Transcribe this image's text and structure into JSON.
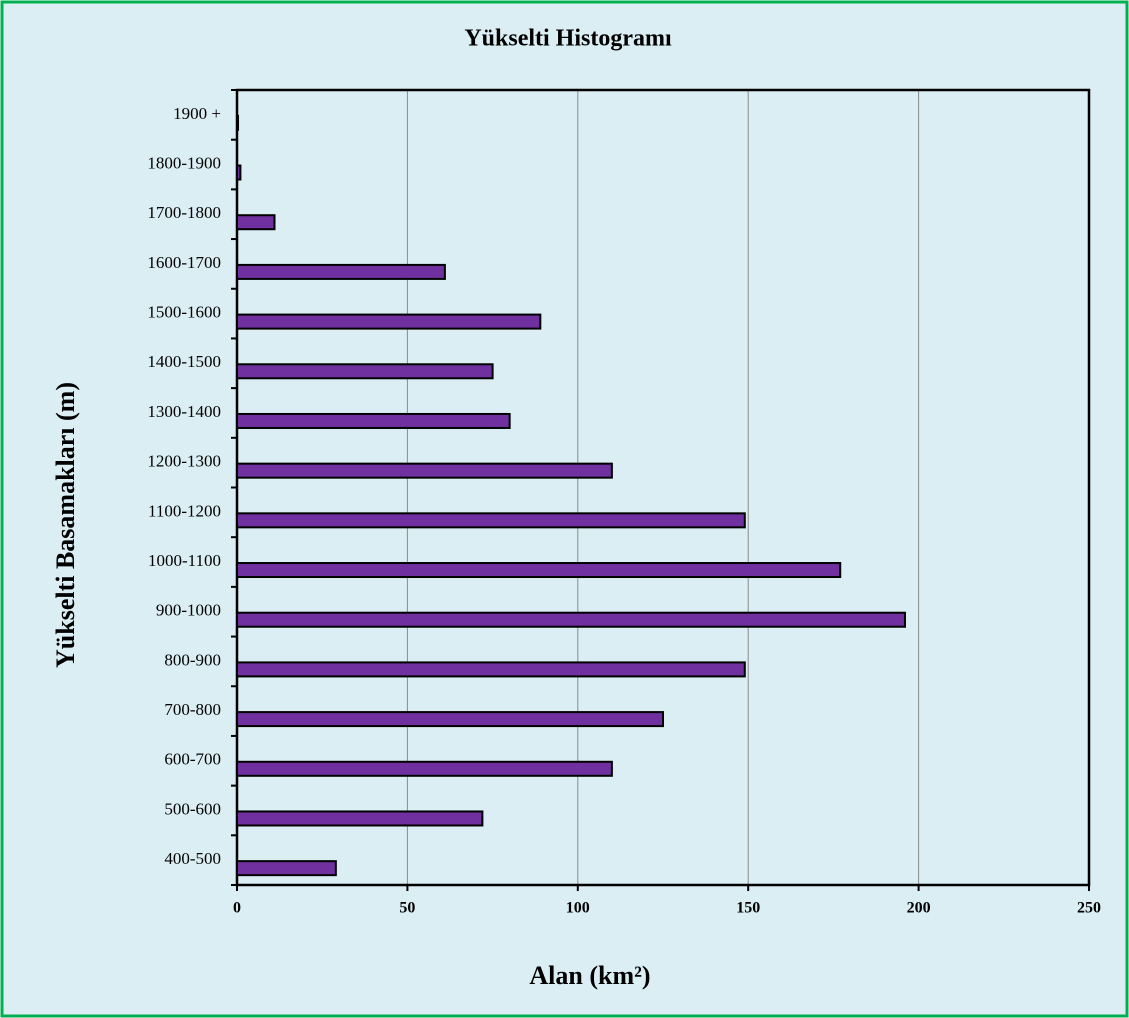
{
  "chart_data": {
    "type": "bar",
    "orientation": "horizontal",
    "title": "Yükselti Histogramı",
    "x_label": "Alan (km²)",
    "y_label": "Yükselti Basamakları (m)",
    "categories": [
      "400-500",
      "500-600",
      "600-700",
      "700-800",
      "800-900",
      "900-1000",
      "1000-1100",
      "1100-1200",
      "1200-1300",
      "1300-1400",
      "1400-1500",
      "1500-1600",
      "1600-1700",
      "1700-1800",
      "1800-1900",
      "1900 +"
    ],
    "values": [
      29,
      72,
      110,
      125,
      149,
      196,
      177,
      149,
      110,
      80,
      75,
      89,
      61,
      11,
      1,
      0.3
    ],
    "color": "#7030a0",
    "xlim": [
      0,
      250
    ],
    "xticks": [
      0,
      50,
      100,
      150,
      200,
      250
    ],
    "grid": true
  }
}
